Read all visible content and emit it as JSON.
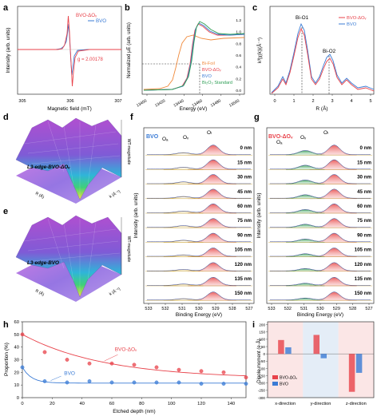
{
  "panels": {
    "a": {
      "letter": "a",
      "type": "line",
      "xlabel": "Magnetic field (mT)",
      "ylabel": "Intensity (arb. units)",
      "xticks": [
        "305",
        "306",
        "307"
      ],
      "annotation": "g = 2.00178",
      "legend": [
        {
          "name": "BVO-ΔOᵥ",
          "color": "#e8424a"
        },
        {
          "name": "BVO",
          "color": "#3a7bd5"
        }
      ]
    },
    "b": {
      "letter": "b",
      "type": "line",
      "xlabel": "Energy (eV)",
      "ylabel": "Normalized μE (arb. units)",
      "xticks": [
        "13400",
        "13420",
        "13440",
        "13460",
        "13480",
        "13500"
      ],
      "yticks": [
        "0.0",
        "0.2",
        "0.4",
        "0.6",
        "0.8",
        "1.0",
        "1.2"
      ],
      "legend": [
        {
          "name": "Bi-Foil",
          "color": "#f08a3c"
        },
        {
          "name": "BVO-ΔOᵥ",
          "color": "#e8424a"
        },
        {
          "name": "BVO",
          "color": "#3a7bd5"
        },
        {
          "name": "Bi₂O₃ Standard",
          "color": "#2e9e55"
        }
      ]
    },
    "c": {
      "letter": "c",
      "type": "line",
      "xlabel": "R (Å)",
      "ylabel": "k³|χ(k)|(Å⁻⁴)",
      "xticks": [
        "0",
        "1",
        "2",
        "3",
        "4",
        "5"
      ],
      "peaks": [
        "Bi-O1",
        "Bi-O2"
      ],
      "legend": [
        {
          "name": "BVO-ΔOᵥ",
          "color": "#e8424a"
        },
        {
          "name": "BVO",
          "color": "#3a7bd5"
        }
      ]
    },
    "d": {
      "letter": "d",
      "label": "L3-edge-BVO-ΔOᵥ",
      "axes": [
        "R (Å)",
        "k (Å⁻¹)",
        "WT-magnitude"
      ]
    },
    "e": {
      "letter": "e",
      "label": "L3-edge-BVO",
      "axes": [
        "R (Å)",
        "k (Å⁻¹)",
        "WT-magnitude"
      ]
    },
    "f": {
      "letter": "f",
      "title": "BVO",
      "peaks": [
        "Oₐ",
        "Oᵥ",
        "Oₗ"
      ],
      "xlabel": "Binding Energy (eV)",
      "ylabel": "Intensity (arb. units)",
      "xticks": [
        "533",
        "532",
        "531",
        "530",
        "529",
        "528",
        "527"
      ],
      "depths": [
        "0 nm",
        "15 nm",
        "30 nm",
        "45 nm",
        "60 nm",
        "75 nm",
        "90 nm",
        "105 nm",
        "120 nm",
        "135 nm",
        "150 nm"
      ]
    },
    "g": {
      "letter": "g",
      "title": "BVO-ΔOᵥ",
      "peaks": [
        "Oₐ",
        "Oᵥ",
        "Oₗ"
      ],
      "xlabel": "Binding Energy (eV)",
      "ylabel": "Intensity (arb. units)",
      "xticks": [
        "533",
        "532",
        "531",
        "530",
        "529",
        "528",
        "527"
      ],
      "depths": [
        "0 nm",
        "15 nm",
        "30 nm",
        "45 nm",
        "60 nm",
        "75 nm",
        "90 nm",
        "105 nm",
        "120 nm",
        "135 nm",
        "150 nm"
      ]
    },
    "h": {
      "letter": "h"
    },
    "i": {
      "letter": "i"
    }
  },
  "chart_data": [
    {
      "panel": "h",
      "type": "scatter",
      "xlabel": "Etched depth (nm)",
      "ylabel": "Proportion (%)",
      "xlim": [
        0,
        150
      ],
      "ylim": [
        0,
        60
      ],
      "xticks": [
        0,
        20,
        40,
        60,
        80,
        100,
        120,
        140
      ],
      "yticks": [
        0,
        10,
        20,
        30,
        40,
        50,
        60
      ],
      "x": [
        0,
        15,
        30,
        45,
        60,
        75,
        90,
        105,
        120,
        135,
        150
      ],
      "series": [
        {
          "name": "BVO-ΔOᵥ",
          "color": "#e8424a",
          "values": [
            50,
            36,
            30,
            27,
            27,
            26,
            24,
            22,
            21,
            20,
            16
          ]
        },
        {
          "name": "BVO",
          "color": "#3a7bd5",
          "values": [
            24,
            13,
            12,
            13,
            12,
            12,
            12,
            12,
            11,
            11,
            11
          ]
        }
      ]
    },
    {
      "panel": "i",
      "type": "bar",
      "ylabel": "Dipole moment (e·Å)",
      "ylim": [
        -300,
        220
      ],
      "yticks": [
        -300,
        -250,
        -200,
        -150,
        -100,
        -50,
        0,
        50,
        100,
        150,
        200
      ],
      "categories": [
        "x-direction",
        "y-direction",
        "z-direction"
      ],
      "series": [
        {
          "name": "BVO-ΔOᵥ",
          "color": "#e8424a",
          "values": [
            95,
            130,
            -260
          ]
        },
        {
          "name": "BVO",
          "color": "#3a7bd5",
          "values": [
            45,
            -30,
            -130
          ]
        }
      ]
    }
  ]
}
